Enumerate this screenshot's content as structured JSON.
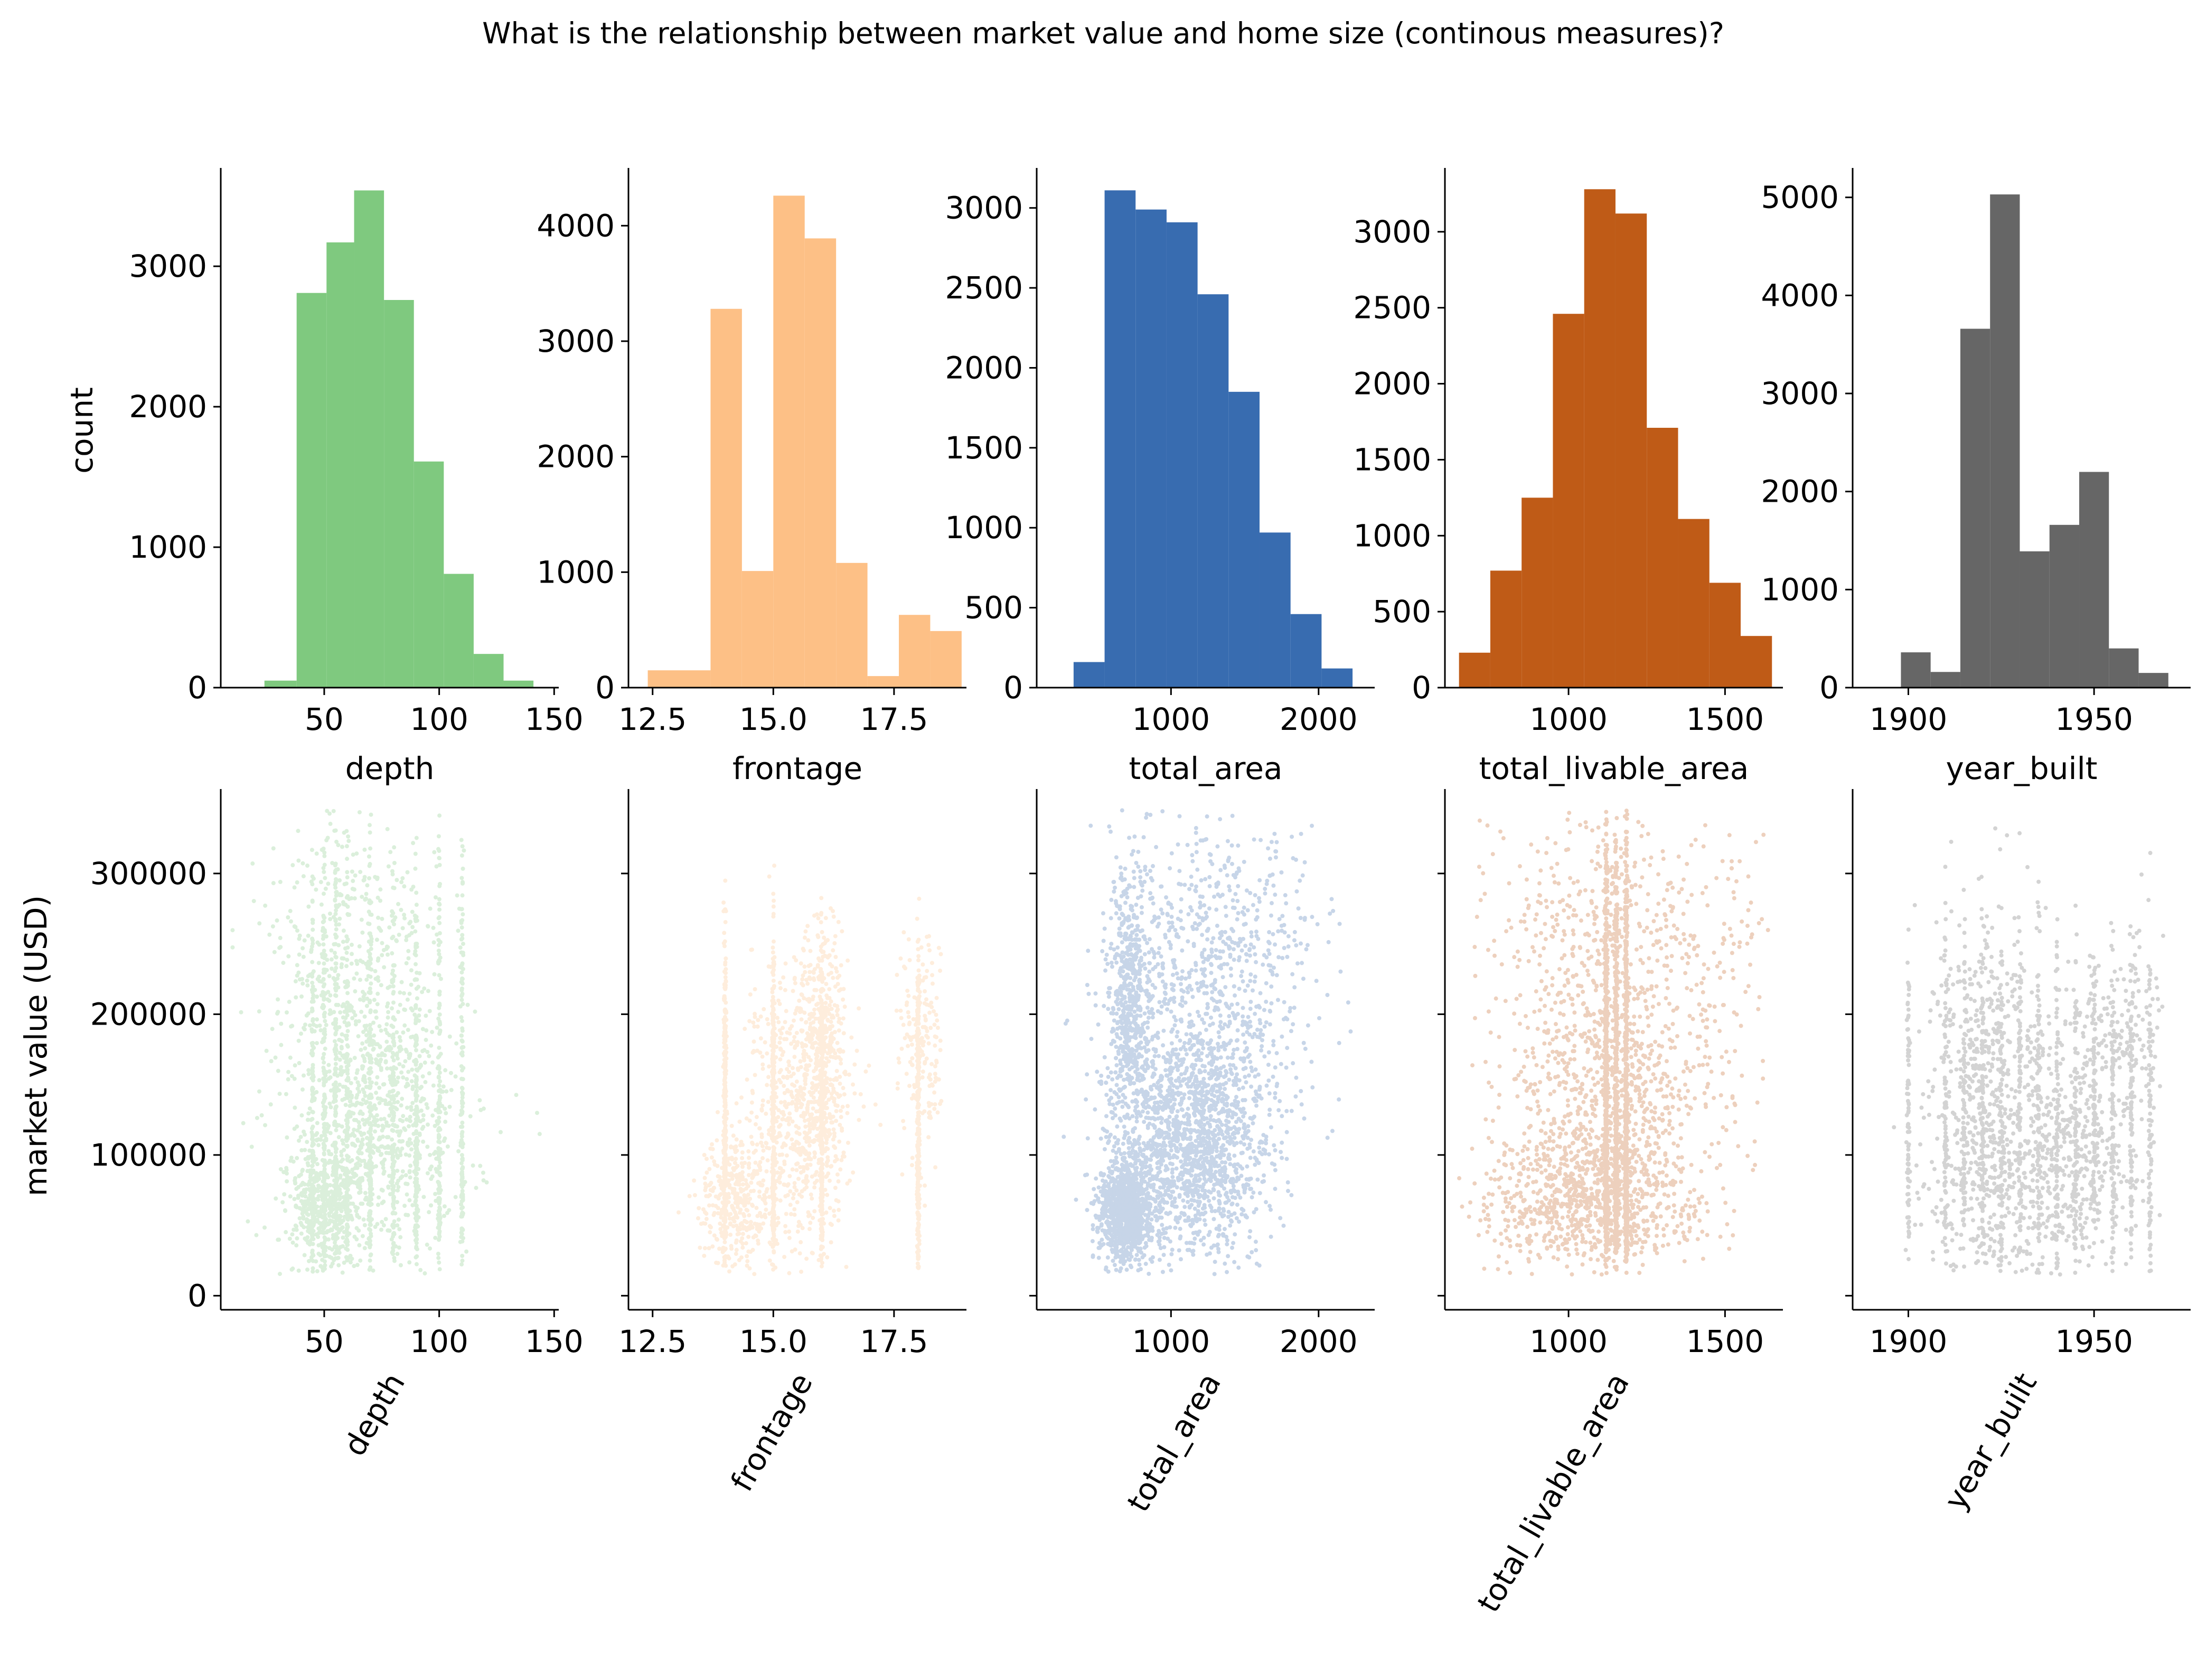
{
  "title": "What is the relationship between market value and home size (continous measures)?",
  "hist_ylabel": "count",
  "scatter_ylabel": "market value (USD)",
  "chart_data": [
    {
      "type": "bar",
      "variable": "depth",
      "xlabel": "depth",
      "color": "#7fc97f",
      "xlim": [
        5,
        152
      ],
      "ylim": [
        0,
        3700
      ],
      "xticks": [
        50,
        100,
        150
      ],
      "xtick_labels": [
        "50",
        "100",
        "150"
      ],
      "yticks": [
        0,
        1000,
        2000,
        3000
      ],
      "ytick_labels": [
        "0",
        "1000",
        "2000",
        "3000"
      ],
      "bin_edges": [
        24,
        38,
        51,
        63,
        76,
        89,
        102,
        115,
        128,
        141,
        154
      ],
      "counts": [
        50,
        2810,
        3170,
        3540,
        2760,
        1610,
        810,
        240,
        50,
        0
      ]
    },
    {
      "type": "bar",
      "variable": "frontage",
      "xlabel": "frontage",
      "color": "#fdc086",
      "xlim": [
        12.0,
        19.0
      ],
      "ylim": [
        0,
        4500
      ],
      "xticks": [
        12.5,
        15.0,
        17.5
      ],
      "xtick_labels": [
        "12.5",
        "15.0",
        "17.5"
      ],
      "yticks": [
        0,
        1000,
        2000,
        3000,
        4000
      ],
      "ytick_labels": [
        "0",
        "1000",
        "2000",
        "3000",
        "4000"
      ],
      "bin_edges": [
        12.4,
        13.05,
        13.7,
        14.35,
        15.0,
        15.65,
        16.3,
        16.95,
        17.6,
        18.25,
        18.9
      ],
      "counts": [
        150,
        150,
        3280,
        1010,
        4260,
        3890,
        1080,
        100,
        630,
        490
      ]
    },
    {
      "type": "bar",
      "variable": "total_area",
      "xlabel": "total_area",
      "color": "#386cb0",
      "xlim": [
        90,
        2380
      ],
      "ylim": [
        0,
        3250
      ],
      "xticks": [
        1000,
        2000
      ],
      "xtick_labels": [
        "1000",
        "2000"
      ],
      "yticks": [
        0,
        500,
        1000,
        1500,
        2000,
        2500,
        3000
      ],
      "ytick_labels": [
        "0",
        "500",
        "1000",
        "1500",
        "2000",
        "2500",
        "3000"
      ],
      "bin_edges": [
        340,
        550,
        760,
        970,
        1180,
        1390,
        1600,
        1810,
        2020,
        2230,
        2440
      ],
      "counts": [
        160,
        3110,
        2990,
        2910,
        2460,
        1850,
        970,
        460,
        120,
        0
      ]
    },
    {
      "type": "bar",
      "variable": "total_livable_area",
      "xlabel": "total_livable_area",
      "color": "#bf5b17",
      "xlim": [
        605,
        1685
      ],
      "ylim": [
        0,
        3420
      ],
      "xticks": [
        1000,
        1500
      ],
      "xtick_labels": [
        "1000",
        "1500"
      ],
      "yticks": [
        0,
        500,
        1000,
        1500,
        2000,
        2500,
        3000
      ],
      "ytick_labels": [
        "0",
        "500",
        "1000",
        "1500",
        "2000",
        "2500",
        "3000"
      ],
      "bin_edges": [
        650,
        750,
        850,
        950,
        1050,
        1150,
        1250,
        1350,
        1450,
        1550,
        1650
      ],
      "counts": [
        230,
        770,
        1250,
        2460,
        3280,
        3120,
        1710,
        1110,
        690,
        340
      ]
    },
    {
      "type": "bar",
      "variable": "year_built",
      "xlabel": "year_built",
      "color": "#666666",
      "xlim": [
        1885,
        1976
      ],
      "ylim": [
        0,
        5300
      ],
      "xticks": [
        1900,
        1950
      ],
      "xtick_labels": [
        "1900",
        "1950"
      ],
      "yticks": [
        0,
        1000,
        2000,
        3000,
        4000,
        5000
      ],
      "ytick_labels": [
        "0",
        "1000",
        "2000",
        "3000",
        "4000",
        "5000"
      ],
      "bin_edges": [
        1898,
        1906,
        1914,
        1922,
        1930,
        1938,
        1946,
        1954,
        1962,
        1970,
        1978
      ],
      "counts": [
        360,
        160,
        3660,
        5030,
        1390,
        1660,
        2200,
        400,
        150,
        0
      ]
    },
    {
      "type": "scatter",
      "variable": "depth",
      "xlabel": "depth",
      "ylabel": "market value (USD)",
      "color": "#7fc97f",
      "xlim": [
        5,
        152
      ],
      "ylim": [
        -10000,
        360000
      ],
      "xticks": [
        50,
        100,
        150
      ],
      "xtick_labels": [
        "50",
        "100",
        "150"
      ],
      "yticks": [
        0,
        100000,
        200000,
        300000
      ],
      "ytick_labels": [
        "0",
        "100000",
        "200000",
        "300000"
      ],
      "x_range": [
        10,
        145
      ],
      "y_range": [
        15000,
        345000
      ],
      "x_modes": [
        45,
        50,
        55,
        60,
        70,
        80,
        90,
        100,
        110
      ],
      "clusters": [
        {
          "x": 50,
          "y": 65000,
          "sx": 8,
          "sy": 22000,
          "n": 900
        },
        {
          "x": 75,
          "y": 120000,
          "sx": 18,
          "sy": 45000,
          "n": 1300
        },
        {
          "x": 60,
          "y": 230000,
          "sx": 20,
          "sy": 60000,
          "n": 900
        }
      ]
    },
    {
      "type": "scatter",
      "variable": "frontage",
      "xlabel": "frontage",
      "color": "#fdc086",
      "xlim": [
        12.0,
        19.0
      ],
      "ylim": [
        -10000,
        360000
      ],
      "xticks": [
        12.5,
        15.0,
        17.5
      ],
      "xtick_labels": [
        "12.5",
        "15.0",
        "17.5"
      ],
      "x_range": [
        12.5,
        18.5
      ],
      "y_range": [
        15000,
        345000
      ],
      "x_modes": [
        14.0,
        15.0,
        16.0,
        18.0
      ],
      "clusters": [
        {
          "x": 14.2,
          "y": 70000,
          "sx": 0.35,
          "sy": 25000,
          "n": 700
        },
        {
          "x": 15.5,
          "y": 130000,
          "sx": 0.5,
          "sy": 50000,
          "n": 1100
        },
        {
          "x": 16.0,
          "y": 170000,
          "sx": 0.25,
          "sy": 45000,
          "n": 700
        },
        {
          "x": 18.1,
          "y": 180000,
          "sx": 0.3,
          "sy": 40000,
          "n": 300
        }
      ]
    },
    {
      "type": "scatter",
      "variable": "total_area",
      "xlabel": "total_area",
      "color": "#386cb0",
      "xlim": [
        90,
        2380
      ],
      "ylim": [
        -10000,
        360000
      ],
      "xticks": [
        1000,
        2000
      ],
      "xtick_labels": [
        "1000",
        "2000"
      ],
      "x_range": [
        260,
        2270
      ],
      "y_range": [
        15000,
        345000
      ],
      "x_modes": [],
      "clusters": [
        {
          "x": 700,
          "y": 60000,
          "sx": 90,
          "sy": 18000,
          "n": 1100
        },
        {
          "x": 1150,
          "y": 110000,
          "sx": 250,
          "sy": 40000,
          "n": 1600
        },
        {
          "x": 720,
          "y": 200000,
          "sx": 70,
          "sy": 50000,
          "n": 600
        },
        {
          "x": 1300,
          "y": 230000,
          "sx": 350,
          "sy": 60000,
          "n": 800
        }
      ]
    },
    {
      "type": "scatter",
      "variable": "total_livable_area",
      "xlabel": "total_livable_area",
      "color": "#bf5b17",
      "xlim": [
        605,
        1685
      ],
      "ylim": [
        -10000,
        360000
      ],
      "xticks": [
        1000,
        1500
      ],
      "xtick_labels": [
        "1000",
        "1500"
      ],
      "x_range": [
        650,
        1650
      ],
      "y_range": [
        15000,
        345000
      ],
      "x_modes": [
        1120,
        1152,
        1184
      ],
      "clusters": [
        {
          "x": 1050,
          "y": 70000,
          "sx": 170,
          "sy": 25000,
          "n": 1500
        },
        {
          "x": 1150,
          "y": 150000,
          "sx": 180,
          "sy": 55000,
          "n": 1500
        },
        {
          "x": 1150,
          "y": 260000,
          "sx": 250,
          "sy": 50000,
          "n": 800
        }
      ]
    },
    {
      "type": "scatter",
      "variable": "year_built",
      "xlabel": "year_built",
      "color": "#666666",
      "xlim": [
        1885,
        1976
      ],
      "ylim": [
        -10000,
        360000
      ],
      "xticks": [
        1900,
        1950
      ],
      "xtick_labels": [
        "1900",
        "1950"
      ],
      "x_range": [
        1890,
        1970
      ],
      "y_range": [
        15000,
        345000
      ],
      "x_modes": [
        1900,
        1910,
        1915,
        1920,
        1925,
        1930,
        1935,
        1940,
        1945,
        1950,
        1955,
        1960,
        1965
      ],
      "clusters": [
        {
          "x": 1922,
          "y": 120000,
          "sx": 8,
          "sy": 70000,
          "n": 1400
        },
        {
          "x": 1945,
          "y": 100000,
          "sx": 8,
          "sy": 45000,
          "n": 800
        },
        {
          "x": 1958,
          "y": 190000,
          "sx": 6,
          "sy": 35000,
          "n": 300
        }
      ]
    }
  ]
}
